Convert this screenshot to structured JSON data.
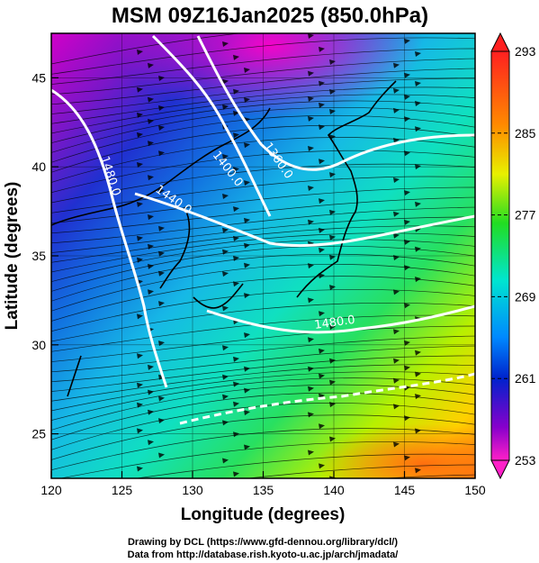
{
  "title": "MSM 09Z16Jan2025 (850.0hPa)",
  "xlabel": "Longitude (degrees)",
  "ylabel": "Latitude  (degrees)",
  "xticks": [
    "120",
    "125",
    "130",
    "135",
    "140",
    "145",
    "150"
  ],
  "yticks": [
    "25",
    "30",
    "35",
    "40",
    "45"
  ],
  "xrange": [
    120,
    150
  ],
  "yrange": [
    22.5,
    47.5
  ],
  "colorbar": {
    "ticks": [
      "293",
      "285",
      "277",
      "269",
      "261",
      "253"
    ],
    "range": [
      253,
      293
    ],
    "colors": [
      "#ff2a6a",
      "#ff7a00",
      "#ffd400",
      "#22dd22",
      "#00e5d0",
      "#0022cc",
      "#ee00ee"
    ]
  },
  "contour_labels": [
    "1480.0",
    "1400.0",
    "1360.0",
    "1440.0",
    "1480.0"
  ],
  "credits": [
    "Drawing by DCL (https://www.gfd-dennou.org/library/dcl/)",
    "Data from http://database.rish.kyoto-u.ac.jp/arch/jmadata/"
  ]
}
